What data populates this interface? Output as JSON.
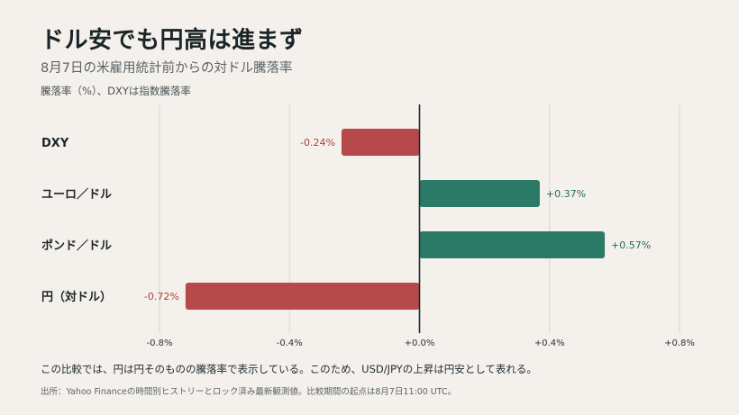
{
  "header": {
    "title": "ドル安でも円高は進まず",
    "subtitle": "8月7日の米雇用統計前からの対ドル騰落率",
    "unit_note": "騰落率（%）、DXYは指数騰落率"
  },
  "chart_data": {
    "type": "bar",
    "orientation": "horizontal",
    "categories": [
      "DXY",
      "ユーロ／ドル",
      "ポンド／ドル",
      "円（対ドル）"
    ],
    "values": [
      -0.24,
      0.37,
      0.57,
      -0.72
    ],
    "value_labels": [
      "-0.24%",
      "+0.37%",
      "+0.57%",
      "-0.72%"
    ],
    "xlim": [
      -0.8,
      0.8
    ],
    "xticks": [
      -0.8,
      -0.4,
      0.0,
      0.4,
      0.8
    ],
    "xtick_labels": [
      "-0.8%",
      "-0.4%",
      "+0.0%",
      "+0.4%",
      "+0.8%"
    ],
    "grid": "vertical",
    "colors": {
      "positive": "#2a7a67",
      "negative": "#b64a4a",
      "positive_text": "#1f6e5b",
      "negative_text": "#b63b3b",
      "zero_line": "#1b2a36",
      "grid": "#d9d5cf"
    }
  },
  "footer": {
    "note": "この比較では、円は円そのものの騰落率で表示している。このため、USD/JPYの上昇は円安として表れる。",
    "source": "出所：Yahoo Financeの時間別ヒストリーとロック済み最新観測値。比較期間の起点は8月7日11:00 UTC。"
  }
}
